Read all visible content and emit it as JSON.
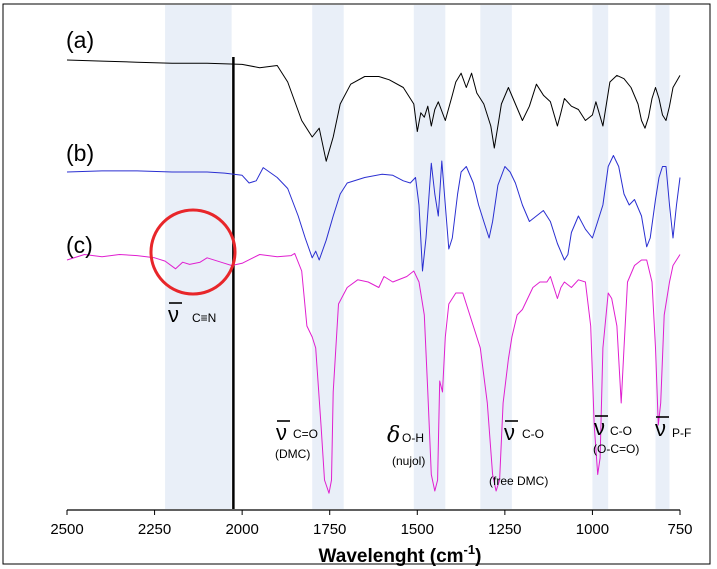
{
  "chart_data": {
    "type": "line",
    "title": "",
    "xlabel": "Wavelenght (cm",
    "xlabel_sup": "-1",
    "xlabel_tail": ")",
    "xlim": [
      2500,
      750
    ],
    "x_reversed": true,
    "x_ticks": [
      2500,
      2250,
      2000,
      1750,
      1500,
      1250,
      1000,
      750
    ],
    "x_tick_labels": [
      "2500",
      "2250",
      "2000",
      "1750",
      "1500",
      "1250",
      "1000",
      "750"
    ],
    "vertical_line_x": 2025,
    "highlight_bands": [
      {
        "from": 2220,
        "to": 2030
      },
      {
        "from": 1800,
        "to": 1710
      },
      {
        "from": 1510,
        "to": 1420
      },
      {
        "from": 1320,
        "to": 1230
      },
      {
        "from": 1000,
        "to": 955
      },
      {
        "from": 820,
        "to": 780
      }
    ],
    "series": [
      {
        "name": "(a)",
        "color": "#000000",
        "baseline": 60,
        "points": [
          [
            2500,
            0
          ],
          [
            2400,
            1
          ],
          [
            2300,
            2
          ],
          [
            2200,
            3
          ],
          [
            2100,
            3
          ],
          [
            2000,
            4
          ],
          [
            1950,
            7
          ],
          [
            1900,
            5
          ],
          [
            1870,
            20
          ],
          [
            1830,
            55
          ],
          [
            1800,
            70
          ],
          [
            1780,
            62
          ],
          [
            1760,
            92
          ],
          [
            1740,
            70
          ],
          [
            1720,
            40
          ],
          [
            1690,
            22
          ],
          [
            1650,
            15
          ],
          [
            1610,
            15
          ],
          [
            1580,
            18
          ],
          [
            1540,
            25
          ],
          [
            1510,
            40
          ],
          [
            1500,
            65
          ],
          [
            1490,
            48
          ],
          [
            1480,
            52
          ],
          [
            1470,
            42
          ],
          [
            1460,
            60
          ],
          [
            1450,
            45
          ],
          [
            1440,
            38
          ],
          [
            1420,
            55
          ],
          [
            1400,
            32
          ],
          [
            1390,
            20
          ],
          [
            1375,
            12
          ],
          [
            1360,
            25
          ],
          [
            1345,
            12
          ],
          [
            1330,
            30
          ],
          [
            1310,
            40
          ],
          [
            1290,
            60
          ],
          [
            1280,
            80
          ],
          [
            1270,
            60
          ],
          [
            1260,
            40
          ],
          [
            1240,
            25
          ],
          [
            1220,
            40
          ],
          [
            1200,
            55
          ],
          [
            1180,
            42
          ],
          [
            1160,
            22
          ],
          [
            1140,
            32
          ],
          [
            1120,
            38
          ],
          [
            1100,
            60
          ],
          [
            1090,
            48
          ],
          [
            1080,
            35
          ],
          [
            1060,
            42
          ],
          [
            1040,
            45
          ],
          [
            1020,
            55
          ],
          [
            1000,
            50
          ],
          [
            990,
            38
          ],
          [
            970,
            60
          ],
          [
            960,
            40
          ],
          [
            950,
            20
          ],
          [
            930,
            14
          ],
          [
            910,
            17
          ],
          [
            890,
            25
          ],
          [
            870,
            40
          ],
          [
            860,
            55
          ],
          [
            850,
            62
          ],
          [
            840,
            52
          ],
          [
            830,
            35
          ],
          [
            820,
            25
          ],
          [
            810,
            35
          ],
          [
            800,
            50
          ],
          [
            790,
            55
          ],
          [
            780,
            42
          ],
          [
            770,
            25
          ],
          [
            750,
            14
          ]
        ]
      },
      {
        "name": "(b)",
        "color": "#2a2fd1",
        "baseline": 172,
        "points": [
          [
            2500,
            0
          ],
          [
            2400,
            -1
          ],
          [
            2300,
            -1
          ],
          [
            2200,
            0
          ],
          [
            2100,
            0
          ],
          [
            2050,
            1
          ],
          [
            2000,
            3
          ],
          [
            1980,
            10
          ],
          [
            1960,
            8
          ],
          [
            1940,
            -4
          ],
          [
            1900,
            5
          ],
          [
            1870,
            15
          ],
          [
            1840,
            40
          ],
          [
            1820,
            60
          ],
          [
            1800,
            78
          ],
          [
            1790,
            72
          ],
          [
            1780,
            80
          ],
          [
            1760,
            62
          ],
          [
            1740,
            40
          ],
          [
            1720,
            20
          ],
          [
            1700,
            10
          ],
          [
            1650,
            5
          ],
          [
            1600,
            2
          ],
          [
            1570,
            3
          ],
          [
            1540,
            8
          ],
          [
            1520,
            10
          ],
          [
            1505,
            5
          ],
          [
            1495,
            30
          ],
          [
            1485,
            90
          ],
          [
            1475,
            60
          ],
          [
            1460,
            -8
          ],
          [
            1450,
            20
          ],
          [
            1440,
            40
          ],
          [
            1430,
            -10
          ],
          [
            1420,
            30
          ],
          [
            1410,
            70
          ],
          [
            1400,
            60
          ],
          [
            1385,
            20
          ],
          [
            1375,
            0
          ],
          [
            1360,
            -5
          ],
          [
            1340,
            10
          ],
          [
            1325,
            30
          ],
          [
            1310,
            45
          ],
          [
            1295,
            60
          ],
          [
            1285,
            45
          ],
          [
            1270,
            12
          ],
          [
            1250,
            -5
          ],
          [
            1235,
            0
          ],
          [
            1220,
            10
          ],
          [
            1200,
            30
          ],
          [
            1180,
            45
          ],
          [
            1160,
            40
          ],
          [
            1140,
            35
          ],
          [
            1120,
            45
          ],
          [
            1100,
            65
          ],
          [
            1080,
            80
          ],
          [
            1070,
            75
          ],
          [
            1060,
            55
          ],
          [
            1040,
            40
          ],
          [
            1020,
            52
          ],
          [
            1000,
            60
          ],
          [
            985,
            45
          ],
          [
            970,
            30
          ],
          [
            955,
            -5
          ],
          [
            940,
            -15
          ],
          [
            925,
            -5
          ],
          [
            910,
            20
          ],
          [
            895,
            30
          ],
          [
            880,
            25
          ],
          [
            860,
            40
          ],
          [
            845,
            68
          ],
          [
            835,
            60
          ],
          [
            820,
            25
          ],
          [
            810,
            5
          ],
          [
            800,
            -5
          ],
          [
            790,
            -5
          ],
          [
            780,
            30
          ],
          [
            770,
            60
          ],
          [
            760,
            30
          ],
          [
            750,
            5
          ]
        ]
      },
      {
        "name": "(c)",
        "color": "#e01fd0",
        "baseline": 260,
        "points": [
          [
            2500,
            0
          ],
          [
            2450,
            -5
          ],
          [
            2400,
            -3
          ],
          [
            2350,
            -5
          ],
          [
            2300,
            -4
          ],
          [
            2250,
            -2
          ],
          [
            2220,
            1
          ],
          [
            2190,
            8
          ],
          [
            2170,
            2
          ],
          [
            2150,
            4
          ],
          [
            2120,
            2
          ],
          [
            2100,
            -2
          ],
          [
            2050,
            3
          ],
          [
            2030,
            5
          ],
          [
            2000,
            3
          ],
          [
            1950,
            -5
          ],
          [
            1900,
            -3
          ],
          [
            1860,
            -4
          ],
          [
            1850,
            -6
          ],
          [
            1830,
            10
          ],
          [
            1815,
            60
          ],
          [
            1800,
            70
          ],
          [
            1790,
            80
          ],
          [
            1775,
            150
          ],
          [
            1765,
            200
          ],
          [
            1752,
            212
          ],
          [
            1745,
            200
          ],
          [
            1740,
            120
          ],
          [
            1725,
            40
          ],
          [
            1700,
            25
          ],
          [
            1670,
            18
          ],
          [
            1640,
            20
          ],
          [
            1610,
            25
          ],
          [
            1595,
            15
          ],
          [
            1570,
            20
          ],
          [
            1530,
            15
          ],
          [
            1510,
            10
          ],
          [
            1495,
            20
          ],
          [
            1480,
            50
          ],
          [
            1470,
            120
          ],
          [
            1460,
            195
          ],
          [
            1450,
            210
          ],
          [
            1442,
            200
          ],
          [
            1436,
            110
          ],
          [
            1428,
            120
          ],
          [
            1420,
            70
          ],
          [
            1410,
            40
          ],
          [
            1390,
            30
          ],
          [
            1370,
            30
          ],
          [
            1350,
            50
          ],
          [
            1320,
            80
          ],
          [
            1300,
            130
          ],
          [
            1285,
            195
          ],
          [
            1275,
            210
          ],
          [
            1265,
            200
          ],
          [
            1255,
            130
          ],
          [
            1240,
            90
          ],
          [
            1230,
            70
          ],
          [
            1215,
            50
          ],
          [
            1200,
            45
          ],
          [
            1170,
            25
          ],
          [
            1150,
            20
          ],
          [
            1130,
            20
          ],
          [
            1120,
            15
          ],
          [
            1110,
            25
          ],
          [
            1100,
            35
          ],
          [
            1090,
            25
          ],
          [
            1080,
            20
          ],
          [
            1060,
            25
          ],
          [
            1040,
            18
          ],
          [
            1020,
            20
          ],
          [
            1005,
            60
          ],
          [
            995,
            150
          ],
          [
            985,
            195
          ],
          [
            978,
            180
          ],
          [
            970,
            80
          ],
          [
            955,
            30
          ],
          [
            945,
            35
          ],
          [
            930,
            60
          ],
          [
            918,
            130
          ],
          [
            910,
            80
          ],
          [
            900,
            20
          ],
          [
            880,
            5
          ],
          [
            860,
            0
          ],
          [
            845,
            0
          ],
          [
            830,
            20
          ],
          [
            820,
            80
          ],
          [
            812,
            150
          ],
          [
            805,
            130
          ],
          [
            795,
            50
          ],
          [
            780,
            20
          ],
          [
            770,
            5
          ],
          [
            760,
            0
          ],
          [
            750,
            -5
          ]
        ]
      }
    ],
    "annotations": [
      {
        "id": "cn",
        "symbol": "ν",
        "sub": "C≡N",
        "note": ""
      },
      {
        "id": "co-dmc",
        "symbol": "ν",
        "sub": "C=O",
        "note": "(DMC)"
      },
      {
        "id": "oh",
        "symbol": "δ",
        "sub": "O-H",
        "note": "(nujol)"
      },
      {
        "id": "co-free",
        "symbol": "ν",
        "sub": "C-O",
        "note": "(free DMC)"
      },
      {
        "id": "co-oco",
        "symbol": "ν",
        "sub": "C-O",
        "note": "(O-C=O)"
      },
      {
        "id": "pf",
        "symbol": "ν",
        "sub": "P-F",
        "note": ""
      }
    ],
    "colors": {
      "band": "#e9eff8",
      "circle": "#e8262a",
      "axis": "#000000"
    },
    "grid": false,
    "legend": "none"
  }
}
